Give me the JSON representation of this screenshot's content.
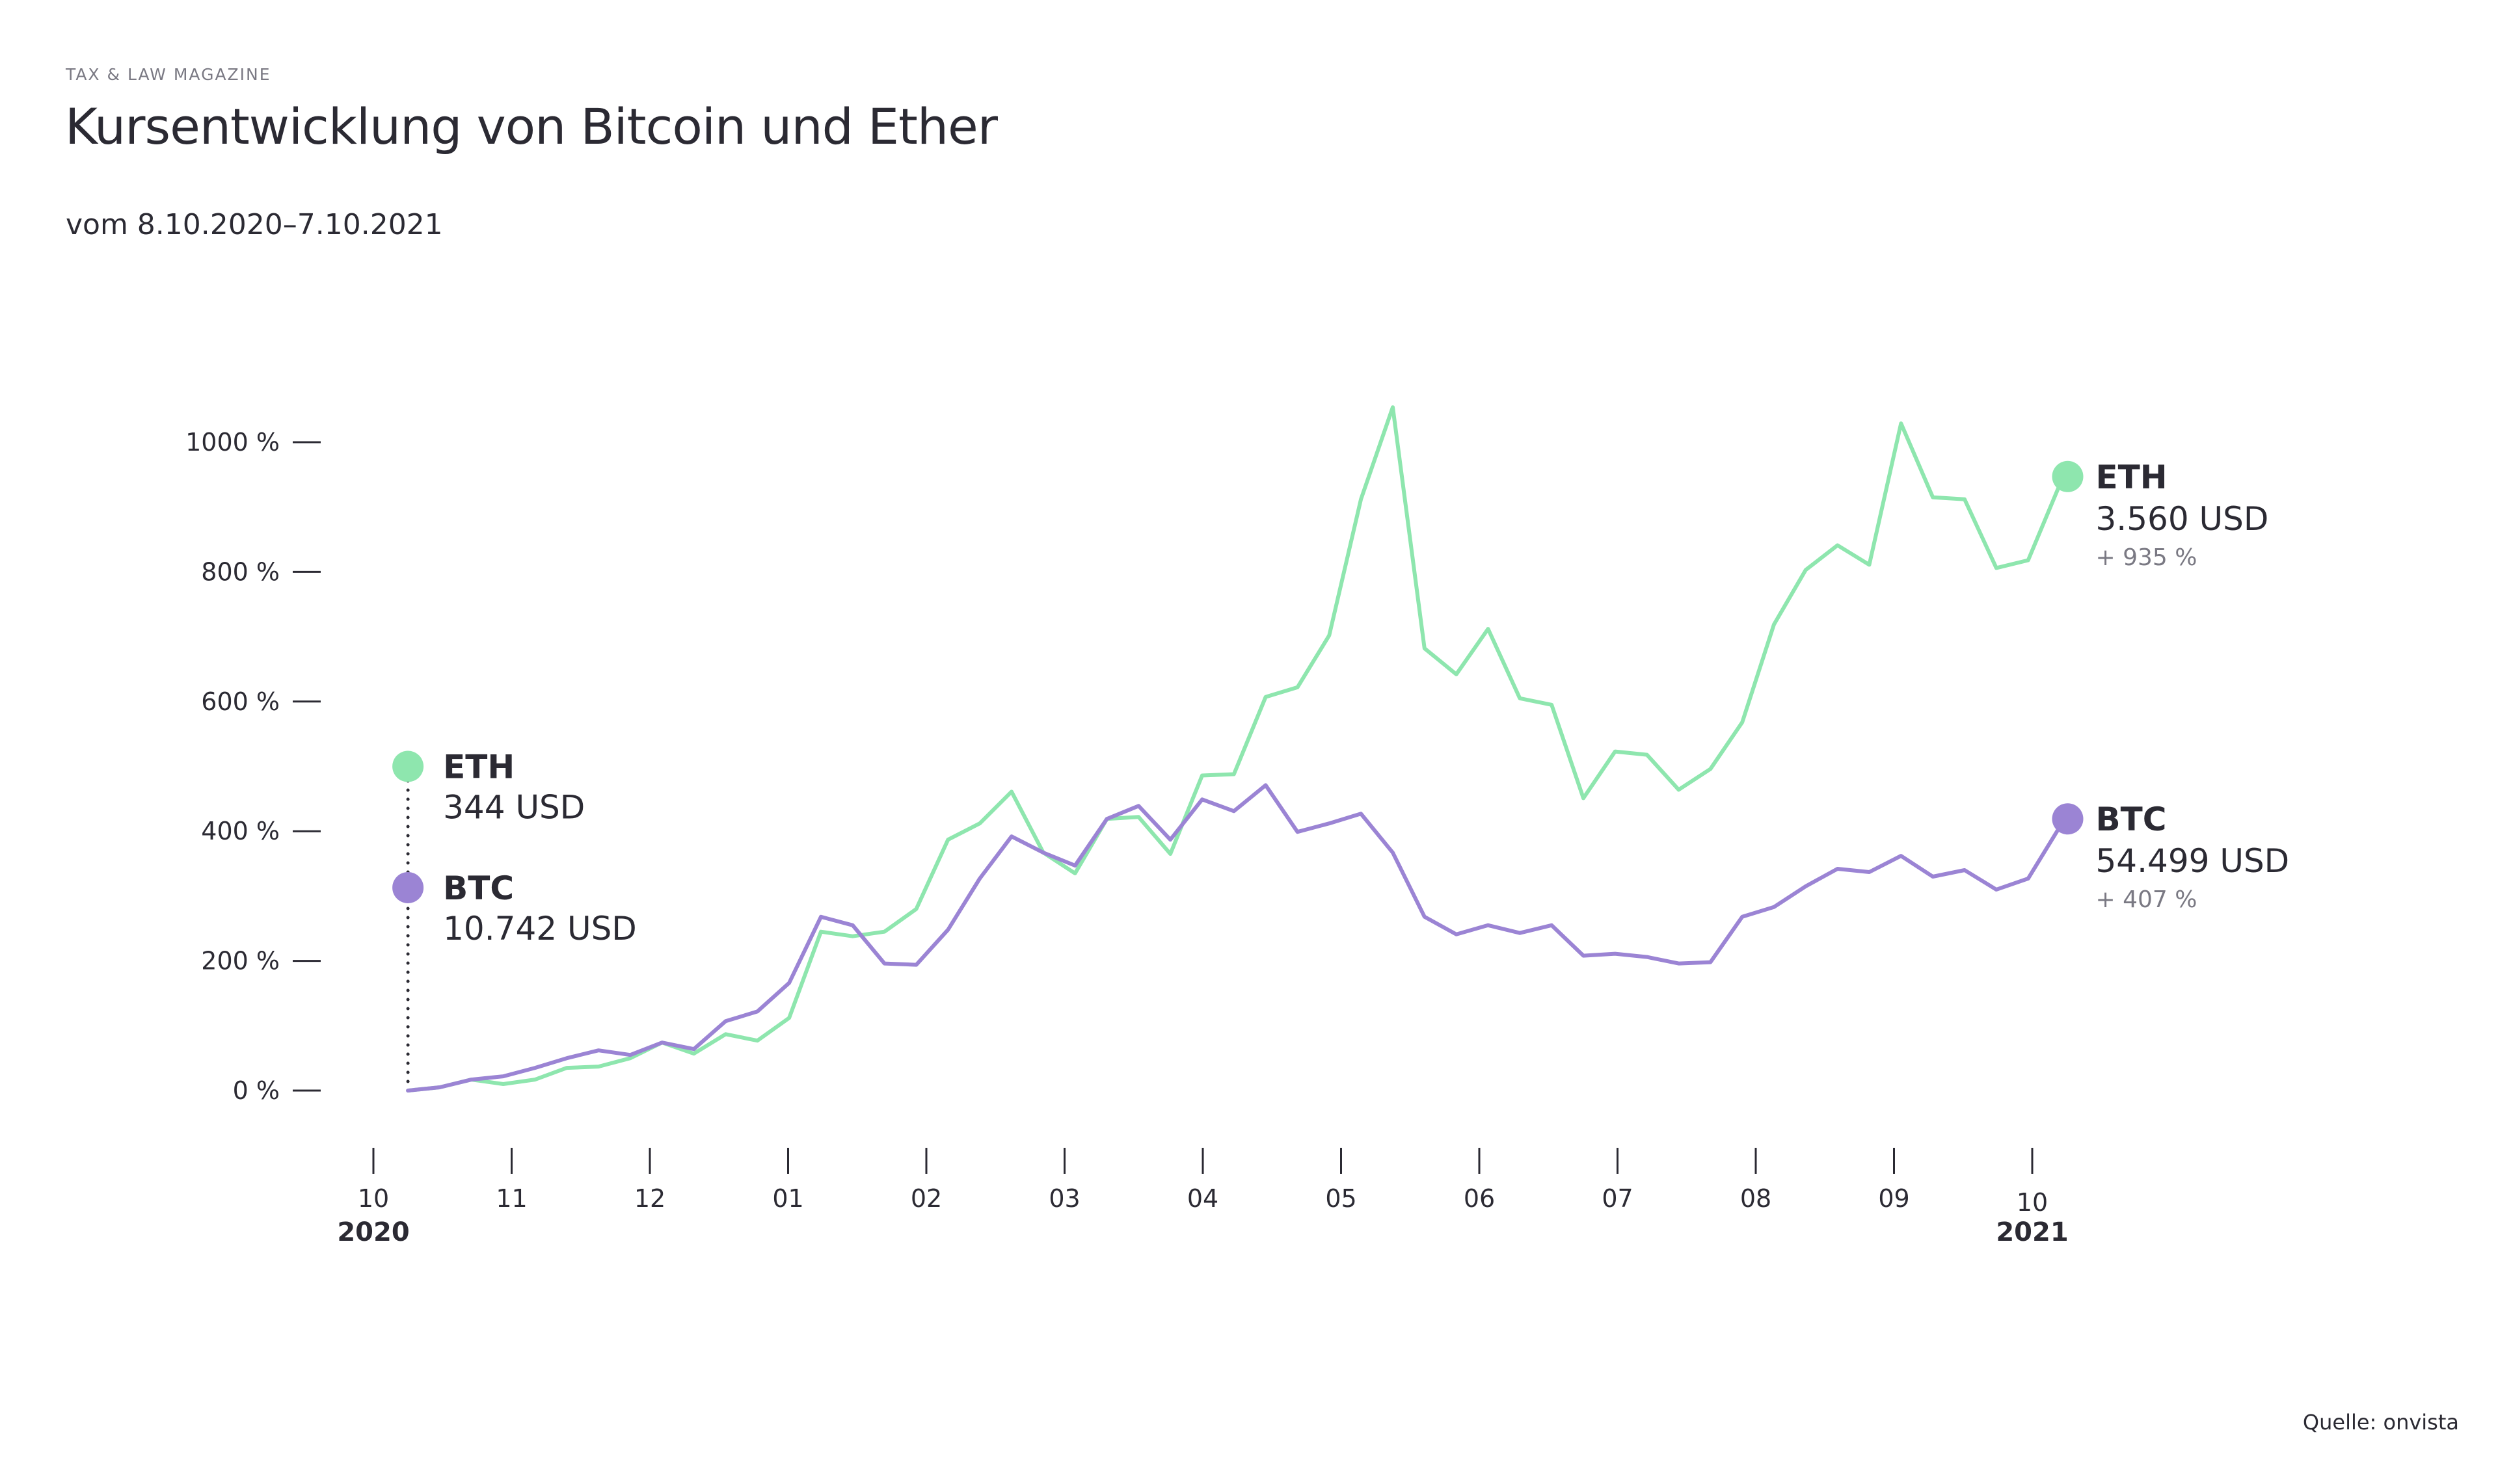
{
  "header": {
    "kicker": "TAX & LAW MAGAZINE",
    "title": "Kursentwicklung von Bitcoin und Ether",
    "subtitle": "vom 8.10.2020–7.10.2021"
  },
  "footer": {
    "source": "Quelle: onvista"
  },
  "colors": {
    "eth": "#8ee6ae",
    "btc": "#9b84d4",
    "text": "#2b2a33",
    "muted": "#7a7983"
  },
  "chart_data": {
    "type": "line",
    "title": "Kursentwicklung von Bitcoin und Ether",
    "subtitle": "vom 8.10.2020–7.10.2021",
    "xlabel": "",
    "ylabel": "",
    "ylim": [
      -80,
      1060
    ],
    "yticks": [
      0,
      200,
      400,
      600,
      800,
      1000
    ],
    "ytick_labels": [
      "0 %",
      "200 %",
      "400 %",
      "600 %",
      "800 %",
      "1000 %"
    ],
    "xticks": [
      "10",
      "11",
      "12",
      "01",
      "02",
      "03",
      "04",
      "05",
      "06",
      "07",
      "08",
      "09",
      "10"
    ],
    "year_labels": [
      {
        "label": "2020",
        "at_tick": 0
      },
      {
        "label": "2021",
        "at_tick": 12
      }
    ],
    "x_start_month_index": 0.25,
    "x_end_month_index": 12.2,
    "grid": false,
    "series": [
      {
        "name": "ETH",
        "values": [
          0,
          5,
          17,
          10,
          17,
          35,
          37,
          50,
          74,
          57,
          87,
          77,
          112,
          245,
          238,
          245,
          280,
          387,
          412,
          461,
          367,
          335,
          419,
          422,
          365,
          486,
          488,
          607,
          622,
          702,
          912,
          1054,
          682,
          642,
          712,
          605,
          595,
          451,
          523,
          518,
          464,
          496,
          568,
          719,
          803,
          841,
          811,
          1029,
          915,
          912,
          806,
          818,
          935
        ]
      },
      {
        "name": "BTC",
        "values": [
          0,
          5,
          17,
          22,
          35,
          50,
          62,
          55,
          74,
          64,
          107,
          122,
          166,
          268,
          255,
          196,
          194,
          248,
          327,
          392,
          367,
          347,
          419,
          439,
          387,
          449,
          431,
          471,
          399,
          412,
          427,
          367,
          268,
          241,
          255,
          243,
          255,
          208,
          211,
          206,
          196,
          198,
          268,
          283,
          315,
          342,
          337,
          362,
          330,
          340,
          310,
          327,
          407
        ]
      }
    ],
    "annotations": {
      "start": [
        {
          "series": "ETH",
          "name": "ETH",
          "value": "344 USD",
          "position_pct": 500
        },
        {
          "series": "BTC",
          "name": "BTC",
          "value": "10.742 USD",
          "position_pct": 313
        }
      ],
      "end": [
        {
          "series": "ETH",
          "name": "ETH",
          "value": "3.560 USD",
          "change": "+ 935 %"
        },
        {
          "series": "BTC",
          "name": "BTC",
          "value": "54.499 USD",
          "change": "+ 407 %"
        }
      ]
    }
  }
}
